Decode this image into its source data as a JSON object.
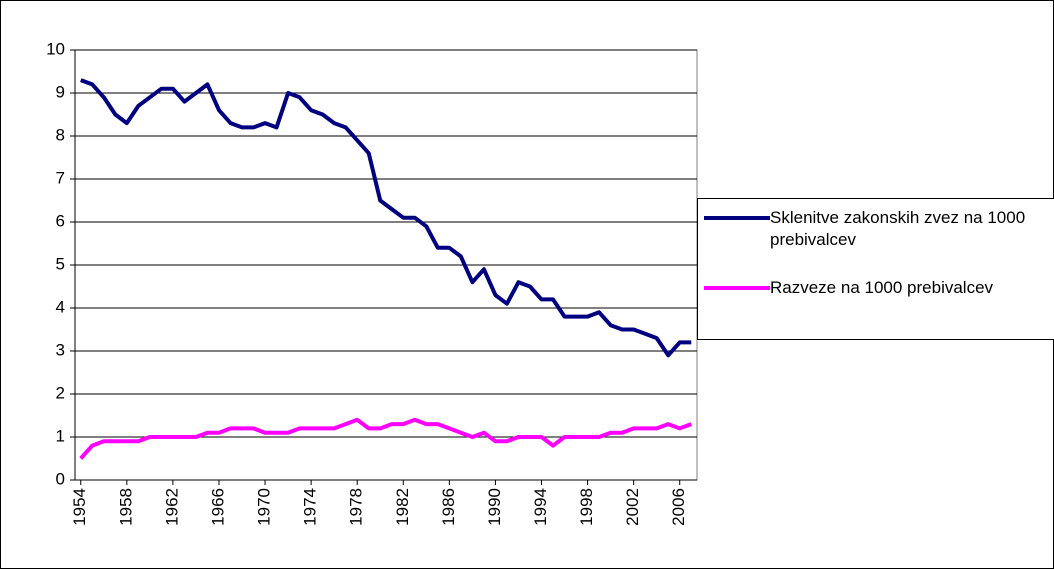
{
  "chart_data": {
    "type": "line",
    "x": [
      1954,
      1955,
      1956,
      1957,
      1958,
      1959,
      1960,
      1961,
      1962,
      1963,
      1964,
      1965,
      1966,
      1967,
      1968,
      1969,
      1970,
      1971,
      1972,
      1973,
      1974,
      1975,
      1976,
      1977,
      1978,
      1979,
      1980,
      1981,
      1982,
      1983,
      1984,
      1985,
      1986,
      1987,
      1988,
      1989,
      1990,
      1991,
      1992,
      1993,
      1994,
      1995,
      1996,
      1997,
      1998,
      1999,
      2000,
      2001,
      2002,
      2003,
      2004,
      2005,
      2006,
      2007
    ],
    "series": [
      {
        "name": "Sklenitve zakonskih zvez na 1000 prebivalcev",
        "color": "#000080",
        "values": [
          9.3,
          9.2,
          8.9,
          8.5,
          8.3,
          8.7,
          8.9,
          9.1,
          9.1,
          8.8,
          9.0,
          9.2,
          8.6,
          8.3,
          8.2,
          8.2,
          8.3,
          8.2,
          9.0,
          8.9,
          8.6,
          8.5,
          8.3,
          8.2,
          7.9,
          7.6,
          6.5,
          6.3,
          6.1,
          6.1,
          5.9,
          5.4,
          5.4,
          5.2,
          4.6,
          4.9,
          4.3,
          4.1,
          4.6,
          4.5,
          4.2,
          4.2,
          3.8,
          3.8,
          3.8,
          3.9,
          3.6,
          3.5,
          3.5,
          3.4,
          3.3,
          2.9,
          3.2,
          3.2
        ]
      },
      {
        "name": "Razveze na 1000 prebivalcev",
        "color": "#ff00ff",
        "values": [
          0.5,
          0.8,
          0.9,
          0.9,
          0.9,
          0.9,
          1.0,
          1.0,
          1.0,
          1.0,
          1.0,
          1.1,
          1.1,
          1.2,
          1.2,
          1.2,
          1.1,
          1.1,
          1.1,
          1.2,
          1.2,
          1.2,
          1.2,
          1.3,
          1.4,
          1.2,
          1.2,
          1.3,
          1.3,
          1.4,
          1.3,
          1.3,
          1.2,
          1.1,
          1.0,
          1.1,
          0.9,
          0.9,
          1.0,
          1.0,
          1.0,
          0.8,
          1.0,
          1.0,
          1.0,
          1.0,
          1.1,
          1.1,
          1.2,
          1.2,
          1.2,
          1.3,
          1.2,
          1.3
        ]
      }
    ],
    "xlim": [
      1953.5,
      2007.5
    ],
    "xticks": [
      1954,
      1958,
      1962,
      1966,
      1970,
      1974,
      1978,
      1982,
      1986,
      1990,
      1994,
      1998,
      2002,
      2006
    ],
    "ylim": [
      0,
      10
    ],
    "yticks": [
      0,
      1,
      2,
      3,
      4,
      5,
      6,
      7,
      8,
      9,
      10
    ],
    "grid": true,
    "legend": "right"
  }
}
